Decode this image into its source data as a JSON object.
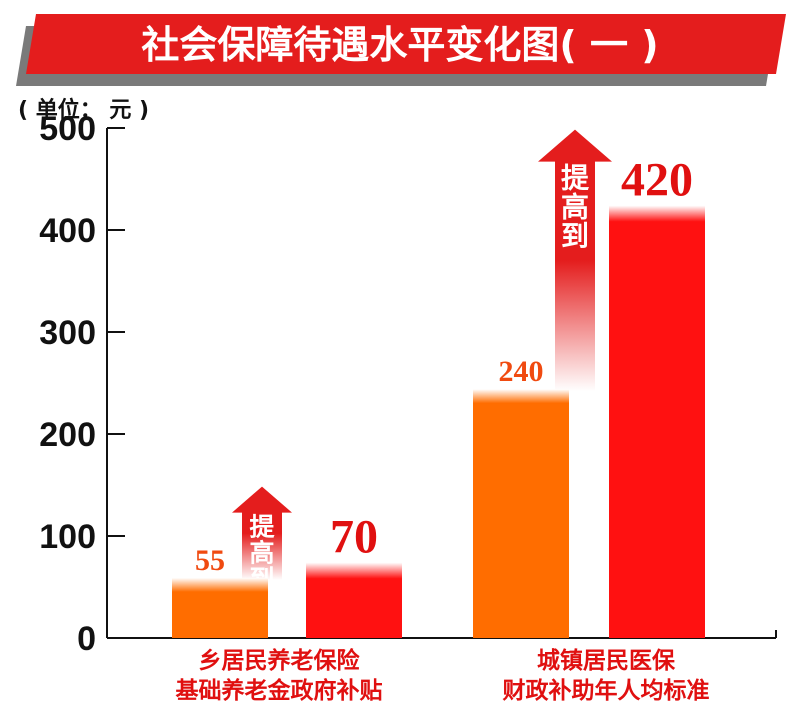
{
  "title": "社会保障待遇水平变化图( 一 )",
  "unit_label": "( 单位： 元 )",
  "arrow_label": "提高到",
  "colors": {
    "banner": "#e41d1d",
    "banner_shadow": "#7a7a7a",
    "old_bar": "#ff6d00",
    "new_bar": "#ff1111",
    "old_value_text": "#f04a10",
    "new_value_text": "#e01010",
    "category_text": "#e01010",
    "axis": "#111111"
  },
  "chart_data": {
    "type": "bar",
    "ylim": [
      0,
      500
    ],
    "yticks": [
      0,
      100,
      200,
      300,
      400,
      500
    ],
    "categories": [
      {
        "lines": [
          "乡居民养老保险",
          "基础养老金政府补贴"
        ]
      },
      {
        "lines": [
          "城镇居民医保",
          "财政补助年人均标准"
        ]
      }
    ],
    "series": [
      {
        "values": [
          55,
          240
        ],
        "labels": [
          "55",
          "240"
        ]
      },
      {
        "values": [
          70,
          420
        ],
        "labels": [
          "70",
          "420"
        ]
      }
    ]
  }
}
